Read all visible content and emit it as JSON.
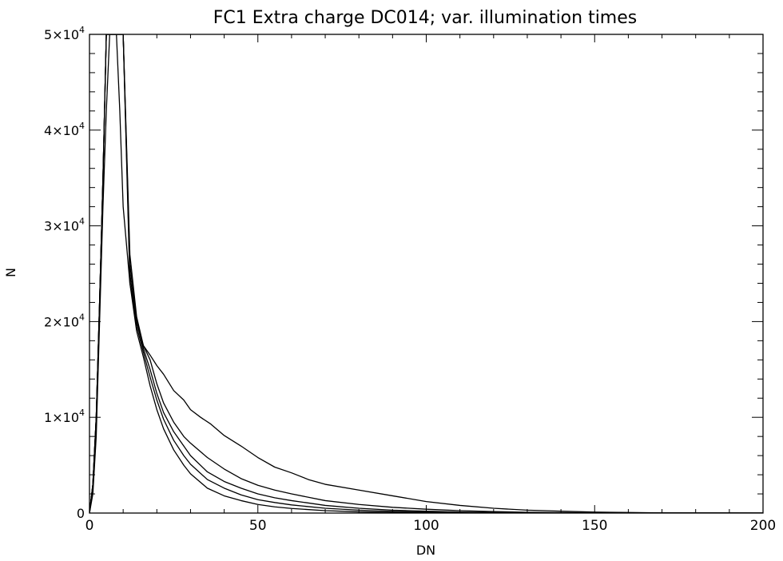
{
  "chart_data": {
    "type": "line",
    "title": "FC1 Extra charge DC014; var. illumination times",
    "xlabel": "DN",
    "ylabel": "N",
    "xlim": [
      0,
      200
    ],
    "ylim": [
      0,
      50000
    ],
    "grid": false,
    "legend": "none",
    "x_ticks": [
      {
        "value": 0,
        "label": "0"
      },
      {
        "value": 50,
        "label": "50"
      },
      {
        "value": 100,
        "label": "100"
      },
      {
        "value": 150,
        "label": "150"
      },
      {
        "value": 200,
        "label": "200"
      }
    ],
    "y_ticks": [
      {
        "value": 0,
        "mantissa": "0",
        "exponent": ""
      },
      {
        "value": 10000,
        "mantissa": "1×10",
        "exponent": "4"
      },
      {
        "value": 20000,
        "mantissa": "2×10",
        "exponent": "4"
      },
      {
        "value": 30000,
        "mantissa": "3×10",
        "exponent": "4"
      },
      {
        "value": 40000,
        "mantissa": "4×10",
        "exponent": "4"
      },
      {
        "value": 50000,
        "mantissa": "5×10",
        "exponent": "4"
      }
    ],
    "series": [
      {
        "x": [
          0,
          1,
          2,
          3,
          4,
          5,
          6,
          8,
          9,
          10,
          12,
          14,
          16,
          18,
          20,
          22,
          25,
          28,
          30,
          33,
          36,
          40,
          45,
          50,
          55,
          60,
          65,
          70,
          80,
          90,
          100,
          110,
          120,
          130,
          140,
          150,
          160,
          170,
          180,
          190,
          200
        ],
        "y": [
          0,
          2000,
          8000,
          20000,
          32000,
          42000,
          50000,
          50000,
          42000,
          32000,
          24000,
          20000,
          17500,
          16500,
          15400,
          14500,
          12800,
          11800,
          10800,
          10000,
          9300,
          8100,
          7000,
          5800,
          4800,
          4200,
          3500,
          3000,
          2400,
          1800,
          1200,
          800,
          500,
          300,
          200,
          100,
          60,
          20,
          10,
          5,
          0
        ]
      },
      {
        "x": [
          0,
          1,
          2,
          3,
          4,
          5,
          6,
          7,
          8,
          9,
          10,
          12,
          14,
          16,
          18,
          20,
          22,
          25,
          28,
          30,
          35,
          40,
          45,
          50,
          55,
          60,
          70,
          80,
          90,
          100,
          110,
          120,
          130,
          150,
          170,
          200
        ],
        "y": [
          0,
          3000,
          10000,
          22000,
          35000,
          50000,
          50000,
          50000,
          50000,
          50000,
          50000,
          27000,
          20500,
          17500,
          16000,
          13500,
          11500,
          9500,
          8000,
          7300,
          5800,
          4600,
          3600,
          2900,
          2400,
          2000,
          1300,
          900,
          600,
          400,
          250,
          150,
          80,
          30,
          10,
          0
        ]
      },
      {
        "x": [
          0,
          1,
          2,
          3,
          4,
          5,
          6,
          7,
          8,
          9,
          10,
          12,
          14,
          16,
          18,
          20,
          22,
          25,
          28,
          30,
          35,
          40,
          45,
          50,
          55,
          60,
          70,
          80,
          90,
          100,
          110,
          120,
          140,
          160,
          200
        ],
        "y": [
          0,
          3000,
          10000,
          22000,
          35000,
          50000,
          50000,
          50000,
          50000,
          50000,
          50000,
          26000,
          20000,
          17200,
          15000,
          12500,
          10500,
          8500,
          7000,
          6000,
          4300,
          3300,
          2600,
          2000,
          1600,
          1300,
          800,
          500,
          300,
          200,
          100,
          60,
          20,
          5,
          0
        ]
      },
      {
        "x": [
          0,
          1,
          2,
          3,
          4,
          5,
          6,
          7,
          8,
          9,
          10,
          12,
          14,
          16,
          18,
          20,
          22,
          25,
          28,
          30,
          35,
          40,
          45,
          50,
          55,
          60,
          70,
          80,
          90,
          100,
          120,
          140,
          200
        ],
        "y": [
          0,
          3000,
          10000,
          22000,
          35000,
          50000,
          50000,
          50000,
          50000,
          50000,
          50000,
          25000,
          19500,
          16800,
          14200,
          11800,
          9800,
          7600,
          6000,
          5100,
          3500,
          2600,
          1900,
          1400,
          1100,
          850,
          500,
          300,
          180,
          100,
          30,
          10,
          0
        ]
      },
      {
        "x": [
          0,
          1,
          2,
          3,
          4,
          5,
          6,
          7,
          8,
          9,
          10,
          12,
          14,
          16,
          18,
          20,
          22,
          25,
          28,
          30,
          35,
          40,
          45,
          50,
          55,
          60,
          70,
          80,
          90,
          100,
          120,
          200
        ],
        "y": [
          0,
          3000,
          10000,
          22000,
          35000,
          50000,
          50000,
          50000,
          50000,
          50000,
          50000,
          24000,
          19000,
          16300,
          13300,
          10800,
          8800,
          6600,
          5000,
          4100,
          2600,
          1800,
          1300,
          900,
          650,
          480,
          250,
          130,
          70,
          40,
          10,
          0
        ]
      }
    ]
  }
}
